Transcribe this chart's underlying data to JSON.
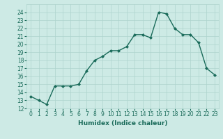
{
  "x": [
    0,
    1,
    2,
    3,
    4,
    5,
    6,
    7,
    8,
    9,
    10,
    11,
    12,
    13,
    14,
    15,
    16,
    17,
    18,
    19,
    20,
    21,
    22,
    23
  ],
  "y": [
    13.5,
    13.0,
    12.5,
    14.8,
    14.8,
    14.8,
    15.0,
    16.7,
    18.0,
    18.5,
    19.2,
    19.2,
    19.7,
    21.2,
    21.2,
    20.8,
    24.0,
    23.8,
    22.0,
    21.2,
    21.2,
    20.2,
    17.0,
    16.2
  ],
  "line_color": "#1a6b5a",
  "marker": "D",
  "markersize": 2.0,
  "linewidth": 1.0,
  "xlabel": "Humidex (Indice chaleur)",
  "xlim": [
    -0.5,
    23.5
  ],
  "ylim": [
    12,
    25
  ],
  "yticks": [
    12,
    13,
    14,
    15,
    16,
    17,
    18,
    19,
    20,
    21,
    22,
    23,
    24
  ],
  "xticks": [
    0,
    1,
    2,
    3,
    4,
    5,
    6,
    7,
    8,
    9,
    10,
    11,
    12,
    13,
    14,
    15,
    16,
    17,
    18,
    19,
    20,
    21,
    22,
    23
  ],
  "bg_color": "#cdeae5",
  "grid_color": "#aed4ce",
  "tick_color": "#1a6b5a",
  "label_color": "#1a6b5a",
  "xlabel_fontsize": 6.5,
  "tick_fontsize": 5.5
}
